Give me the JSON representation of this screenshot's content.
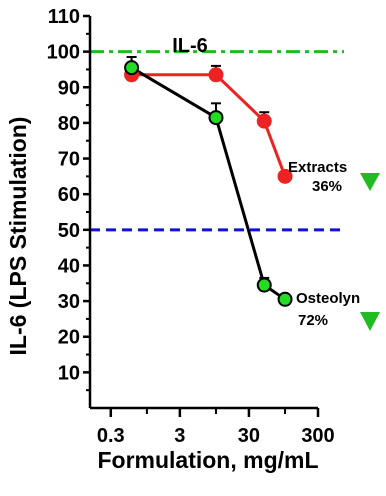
{
  "chart_data": {
    "type": "line",
    "title": "IL-6",
    "xlabel": "Formulation, mg/mL",
    "ylabel": "IL-6 (LPS Stimulation)",
    "xscale": "log",
    "xlim": [
      0.15,
      300
    ],
    "ylim": [
      0,
      110
    ],
    "x_ticks": [
      0.3,
      3,
      30,
      300
    ],
    "x_tick_labels": [
      "0.3",
      "3",
      "30",
      "300"
    ],
    "y_ticks": [
      10,
      20,
      30,
      40,
      50,
      60,
      70,
      80,
      90,
      100,
      110
    ],
    "y_tick_labels": [
      "10",
      "20",
      "30",
      "40",
      "50",
      "60",
      "70",
      "80",
      "90",
      "100",
      "110"
    ],
    "reference_lines": [
      {
        "y": 100,
        "color": "#22bb22",
        "style": "dash-dot"
      },
      {
        "y": 50,
        "color": "#1010dd",
        "style": "dashed"
      }
    ],
    "series": [
      {
        "name": "Extracts",
        "color": "#ee2222",
        "x": [
          0.6,
          10,
          50,
          100
        ],
        "values": [
          93.5,
          93.5,
          80.5,
          65
        ],
        "errors": [
          1.5,
          2.5,
          2.5,
          1
        ]
      },
      {
        "name": "Osteolyn",
        "color": "#000000",
        "marker_color": "#22dd22",
        "x": [
          0.6,
          10,
          50,
          100
        ],
        "values": [
          95.5,
          81.5,
          34.5,
          30.5
        ],
        "errors": [
          3,
          4,
          2,
          1
        ]
      }
    ],
    "annotations": [
      {
        "label": "Extracts",
        "value": "36%",
        "arrow_color": "#22bb22"
      },
      {
        "label": "Osteolyn",
        "value": "72%",
        "arrow_color": "#22bb22"
      }
    ]
  }
}
